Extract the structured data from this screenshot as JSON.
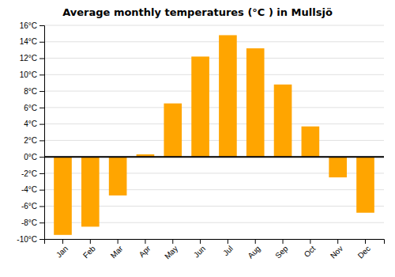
{
  "chart_data": {
    "type": "bar",
    "title": "Average monthly temperatures (°C ) in Mullsjö",
    "categories": [
      "Jan",
      "Feb",
      "Mar",
      "Apr",
      "May",
      "Jun",
      "Jul",
      "Aug",
      "Sep",
      "Oct",
      "Nov",
      "Dec"
    ],
    "values": [
      -9.5,
      -8.5,
      -4.7,
      0.3,
      6.5,
      12.2,
      14.8,
      13.2,
      8.8,
      3.7,
      -2.5,
      -6.8
    ],
    "color": "#FFA500",
    "ylim": [
      -10,
      16
    ],
    "yticks": [
      {
        "value": -10,
        "label": "-10°C"
      },
      {
        "value": -8,
        "label": "-8°C"
      },
      {
        "value": -6,
        "label": "-6°C"
      },
      {
        "value": -4,
        "label": "-4°C"
      },
      {
        "value": -2,
        "label": "-2°C"
      },
      {
        "value": 0,
        "label": "0°C"
      },
      {
        "value": 2,
        "label": "2°C"
      },
      {
        "value": 4,
        "label": "4°C"
      },
      {
        "value": 6,
        "label": "6°C"
      },
      {
        "value": 8,
        "label": "8°C"
      },
      {
        "value": 10,
        "label": "10°C"
      },
      {
        "value": 12,
        "label": "12°C"
      },
      {
        "value": 14,
        "label": "14°C"
      },
      {
        "value": 16,
        "label": "16°C"
      }
    ],
    "grid": true
  }
}
